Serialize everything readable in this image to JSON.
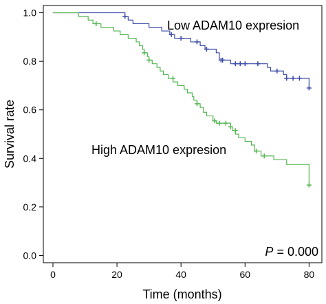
{
  "chart_data": {
    "type": "line",
    "step": true,
    "xlabel": "Time (months)",
    "ylabel": "Survival rate",
    "xlim": [
      -3,
      84
    ],
    "ylim": [
      -0.03,
      1.03
    ],
    "x_ticks": [
      0,
      20,
      40,
      60,
      80
    ],
    "y_ticks": [
      0.0,
      0.2,
      0.4,
      0.6,
      0.8,
      1.0
    ],
    "x_tick_labels": [
      "0",
      "20",
      "40",
      "60",
      "80"
    ],
    "y_tick_labels": [
      "0.0",
      "0.2",
      "0.4",
      "0.6",
      "0.8",
      "1.0"
    ],
    "grid": false,
    "annotations": {
      "p_label": "P",
      "p_value": " = 0.000"
    },
    "series": [
      {
        "name": "Low ADAM10 expresion",
        "color": "#3B4BA6",
        "points": [
          [
            0,
            1.0
          ],
          [
            22.5,
            1.0
          ],
          [
            22.5,
            0.985
          ],
          [
            23.5,
            0.985
          ],
          [
            23.5,
            0.97
          ],
          [
            25,
            0.97
          ],
          [
            25,
            0.955
          ],
          [
            30,
            0.955
          ],
          [
            30,
            0.94
          ],
          [
            34,
            0.94
          ],
          [
            34,
            0.925
          ],
          [
            36.5,
            0.925
          ],
          [
            36.5,
            0.91
          ],
          [
            38,
            0.91
          ],
          [
            38,
            0.895
          ],
          [
            43,
            0.895
          ],
          [
            43,
            0.88
          ],
          [
            46,
            0.88
          ],
          [
            46,
            0.865
          ],
          [
            47.5,
            0.865
          ],
          [
            47.5,
            0.85
          ],
          [
            51,
            0.85
          ],
          [
            51,
            0.835
          ],
          [
            52,
            0.835
          ],
          [
            52,
            0.805
          ],
          [
            55.5,
            0.805
          ],
          [
            55.5,
            0.79
          ],
          [
            67,
            0.79
          ],
          [
            67,
            0.775
          ],
          [
            68,
            0.775
          ],
          [
            68,
            0.76
          ],
          [
            72,
            0.76
          ],
          [
            72,
            0.745
          ],
          [
            73,
            0.745
          ],
          [
            73,
            0.73
          ],
          [
            80,
            0.73
          ],
          [
            80,
            0.69
          ]
        ],
        "censor_marks": [
          [
            22.5,
            0.985
          ],
          [
            37,
            0.91
          ],
          [
            40,
            0.895
          ],
          [
            45,
            0.88
          ],
          [
            48,
            0.85
          ],
          [
            52.5,
            0.805
          ],
          [
            53,
            0.805
          ],
          [
            57,
            0.79
          ],
          [
            58.5,
            0.79
          ],
          [
            60,
            0.79
          ],
          [
            64,
            0.79
          ],
          [
            70,
            0.76
          ],
          [
            73,
            0.73
          ],
          [
            75,
            0.73
          ],
          [
            77,
            0.73
          ],
          [
            80,
            0.69
          ]
        ]
      },
      {
        "name": "High ADAM10 expresion",
        "color": "#53B651",
        "points": [
          [
            0,
            1.0
          ],
          [
            8,
            1.0
          ],
          [
            8,
            0.985
          ],
          [
            11,
            0.985
          ],
          [
            11,
            0.97
          ],
          [
            12.5,
            0.97
          ],
          [
            12.5,
            0.955
          ],
          [
            15,
            0.955
          ],
          [
            15,
            0.94
          ],
          [
            19,
            0.94
          ],
          [
            19,
            0.925
          ],
          [
            21,
            0.925
          ],
          [
            21,
            0.91
          ],
          [
            23.5,
            0.91
          ],
          [
            23.5,
            0.895
          ],
          [
            26,
            0.895
          ],
          [
            26,
            0.88
          ],
          [
            27,
            0.88
          ],
          [
            27,
            0.865
          ],
          [
            28,
            0.865
          ],
          [
            28,
            0.85
          ],
          [
            28.5,
            0.85
          ],
          [
            28.5,
            0.835
          ],
          [
            29.5,
            0.835
          ],
          [
            29.5,
            0.82
          ],
          [
            30,
            0.82
          ],
          [
            30,
            0.805
          ],
          [
            31,
            0.805
          ],
          [
            31,
            0.79
          ],
          [
            32.5,
            0.79
          ],
          [
            32.5,
            0.775
          ],
          [
            33.5,
            0.775
          ],
          [
            33.5,
            0.76
          ],
          [
            34.5,
            0.76
          ],
          [
            34.5,
            0.745
          ],
          [
            36,
            0.745
          ],
          [
            36,
            0.73
          ],
          [
            37.5,
            0.73
          ],
          [
            37.5,
            0.715
          ],
          [
            39,
            0.715
          ],
          [
            39,
            0.7
          ],
          [
            41,
            0.7
          ],
          [
            41,
            0.685
          ],
          [
            42,
            0.685
          ],
          [
            42,
            0.67
          ],
          [
            43.5,
            0.67
          ],
          [
            43.5,
            0.655
          ],
          [
            44,
            0.655
          ],
          [
            44,
            0.64
          ],
          [
            45,
            0.64
          ],
          [
            45,
            0.625
          ],
          [
            46,
            0.625
          ],
          [
            46,
            0.61
          ],
          [
            47,
            0.61
          ],
          [
            47,
            0.59
          ],
          [
            48,
            0.59
          ],
          [
            48,
            0.575
          ],
          [
            50,
            0.575
          ],
          [
            50,
            0.555
          ],
          [
            51,
            0.555
          ],
          [
            51,
            0.545
          ],
          [
            55.5,
            0.545
          ],
          [
            55.5,
            0.53
          ],
          [
            56,
            0.53
          ],
          [
            56,
            0.515
          ],
          [
            57,
            0.515
          ],
          [
            57,
            0.5
          ],
          [
            58,
            0.5
          ],
          [
            58,
            0.485
          ],
          [
            60,
            0.485
          ],
          [
            60,
            0.47
          ],
          [
            62,
            0.47
          ],
          [
            62,
            0.455
          ],
          [
            63,
            0.455
          ],
          [
            63,
            0.43
          ],
          [
            65,
            0.43
          ],
          [
            65,
            0.41
          ],
          [
            69,
            0.41
          ],
          [
            69,
            0.395
          ],
          [
            73,
            0.395
          ],
          [
            73,
            0.375
          ],
          [
            80,
            0.375
          ],
          [
            80,
            0.29
          ]
        ],
        "censor_marks": [
          [
            13.5,
            0.955
          ],
          [
            28.5,
            0.835
          ],
          [
            30,
            0.805
          ],
          [
            37.5,
            0.73
          ],
          [
            45,
            0.625
          ],
          [
            50.5,
            0.555
          ],
          [
            52,
            0.545
          ],
          [
            54,
            0.545
          ],
          [
            55.5,
            0.53
          ],
          [
            57,
            0.515
          ],
          [
            63.5,
            0.43
          ],
          [
            66,
            0.41
          ],
          [
            80,
            0.29
          ]
        ]
      }
    ]
  }
}
